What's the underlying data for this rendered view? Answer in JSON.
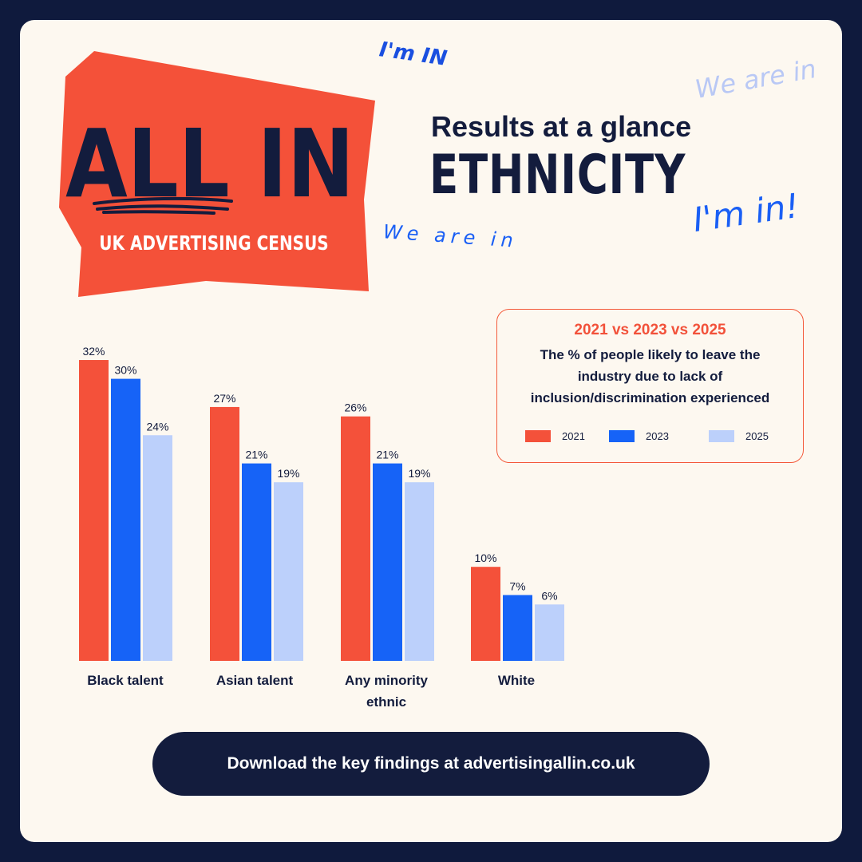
{
  "logo": {
    "line1": "ALL IN",
    "line2": "UK ADVERTISING CENSUS"
  },
  "scribbles": {
    "top": "I'm IN",
    "right_faint": "We are in",
    "right": "I'm in!",
    "left": "We are in"
  },
  "header": {
    "subtitle": "Results at a glance",
    "title": "ETHNICITY"
  },
  "legend": {
    "title": "2021 vs 2023 vs 2025",
    "description": "The % of people likely to leave the industry due to lack of inclusion/discrimination experienced",
    "items": [
      {
        "label": "2021",
        "color": "#f4513a"
      },
      {
        "label": "2023",
        "color": "#1663f7"
      },
      {
        "label": "2025",
        "color": "#bcd0fb"
      }
    ]
  },
  "chart_data": {
    "type": "bar",
    "categories": [
      "Black talent",
      "Asian talent",
      "Any minority ethnic",
      "White"
    ],
    "series": [
      {
        "name": "2021",
        "values": [
          32,
          27,
          26,
          10
        ],
        "color": "#f4513a"
      },
      {
        "name": "2023",
        "values": [
          30,
          21,
          21,
          7
        ],
        "color": "#1663f7"
      },
      {
        "name": "2025",
        "values": [
          24,
          19,
          19,
          6
        ],
        "color": "#bcd0fb"
      }
    ],
    "value_suffix": "%",
    "ylim": [
      0,
      32
    ],
    "legend_position": "top-right",
    "grid": false
  },
  "cta": {
    "label": "Download the key findings at advertisingallin.co.uk"
  }
}
